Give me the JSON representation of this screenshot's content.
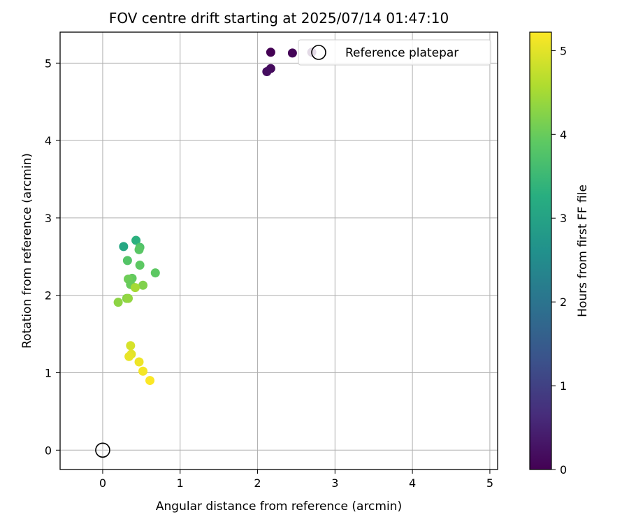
{
  "chart_data": {
    "type": "scatter",
    "title": "FOV centre drift starting at 2025/07/14 01:47:10",
    "xlabel": "Angular distance from reference (arcmin)",
    "ylabel": "Rotation from reference (arcmin)",
    "xlim": [
      -0.55,
      5.1
    ],
    "ylim": [
      -0.25,
      5.4
    ],
    "x_ticks": [
      "0",
      "1",
      "2",
      "3",
      "4",
      "5"
    ],
    "y_ticks": [
      "0",
      "1",
      "2",
      "3",
      "4",
      "5"
    ],
    "grid": true,
    "legend_position": "top-right",
    "colorbar": {
      "label": "Hours from first FF file",
      "range": [
        0,
        5.22
      ],
      "ticks": [
        "0",
        "1",
        "2",
        "3",
        "4",
        "5"
      ],
      "colormap": "viridis"
    },
    "reference": {
      "name": "Reference platepar",
      "x": 0,
      "y": 0
    },
    "points": [
      {
        "x": 2.17,
        "y": 5.14,
        "h": 0.0
      },
      {
        "x": 2.45,
        "y": 5.13,
        "h": 0.05
      },
      {
        "x": 2.7,
        "y": 5.14,
        "h": 0.1
      },
      {
        "x": 2.17,
        "y": 4.93,
        "h": 0.15
      },
      {
        "x": 2.12,
        "y": 4.89,
        "h": 0.2
      },
      {
        "x": 0.27,
        "y": 2.63,
        "h": 3.1
      },
      {
        "x": 0.43,
        "y": 2.71,
        "h": 3.3
      },
      {
        "x": 0.48,
        "y": 2.62,
        "h": 3.75
      },
      {
        "x": 0.47,
        "y": 2.59,
        "h": 3.85
      },
      {
        "x": 0.32,
        "y": 2.45,
        "h": 3.8
      },
      {
        "x": 0.48,
        "y": 2.39,
        "h": 3.9
      },
      {
        "x": 0.68,
        "y": 2.29,
        "h": 3.9
      },
      {
        "x": 0.38,
        "y": 2.22,
        "h": 3.95
      },
      {
        "x": 0.33,
        "y": 2.21,
        "h": 4.05
      },
      {
        "x": 0.36,
        "y": 2.14,
        "h": 4.0
      },
      {
        "x": 0.52,
        "y": 2.13,
        "h": 4.2
      },
      {
        "x": 0.42,
        "y": 2.1,
        "h": 4.5
      },
      {
        "x": 0.31,
        "y": 1.96,
        "h": 4.25
      },
      {
        "x": 0.33,
        "y": 1.96,
        "h": 4.35
      },
      {
        "x": 0.2,
        "y": 1.91,
        "h": 4.3
      },
      {
        "x": 0.36,
        "y": 1.35,
        "h": 4.9
      },
      {
        "x": 0.37,
        "y": 1.24,
        "h": 5.0
      },
      {
        "x": 0.34,
        "y": 1.21,
        "h": 5.05
      },
      {
        "x": 0.47,
        "y": 1.14,
        "h": 5.1
      },
      {
        "x": 0.52,
        "y": 1.02,
        "h": 5.15
      },
      {
        "x": 0.61,
        "y": 0.9,
        "h": 5.2
      }
    ]
  }
}
